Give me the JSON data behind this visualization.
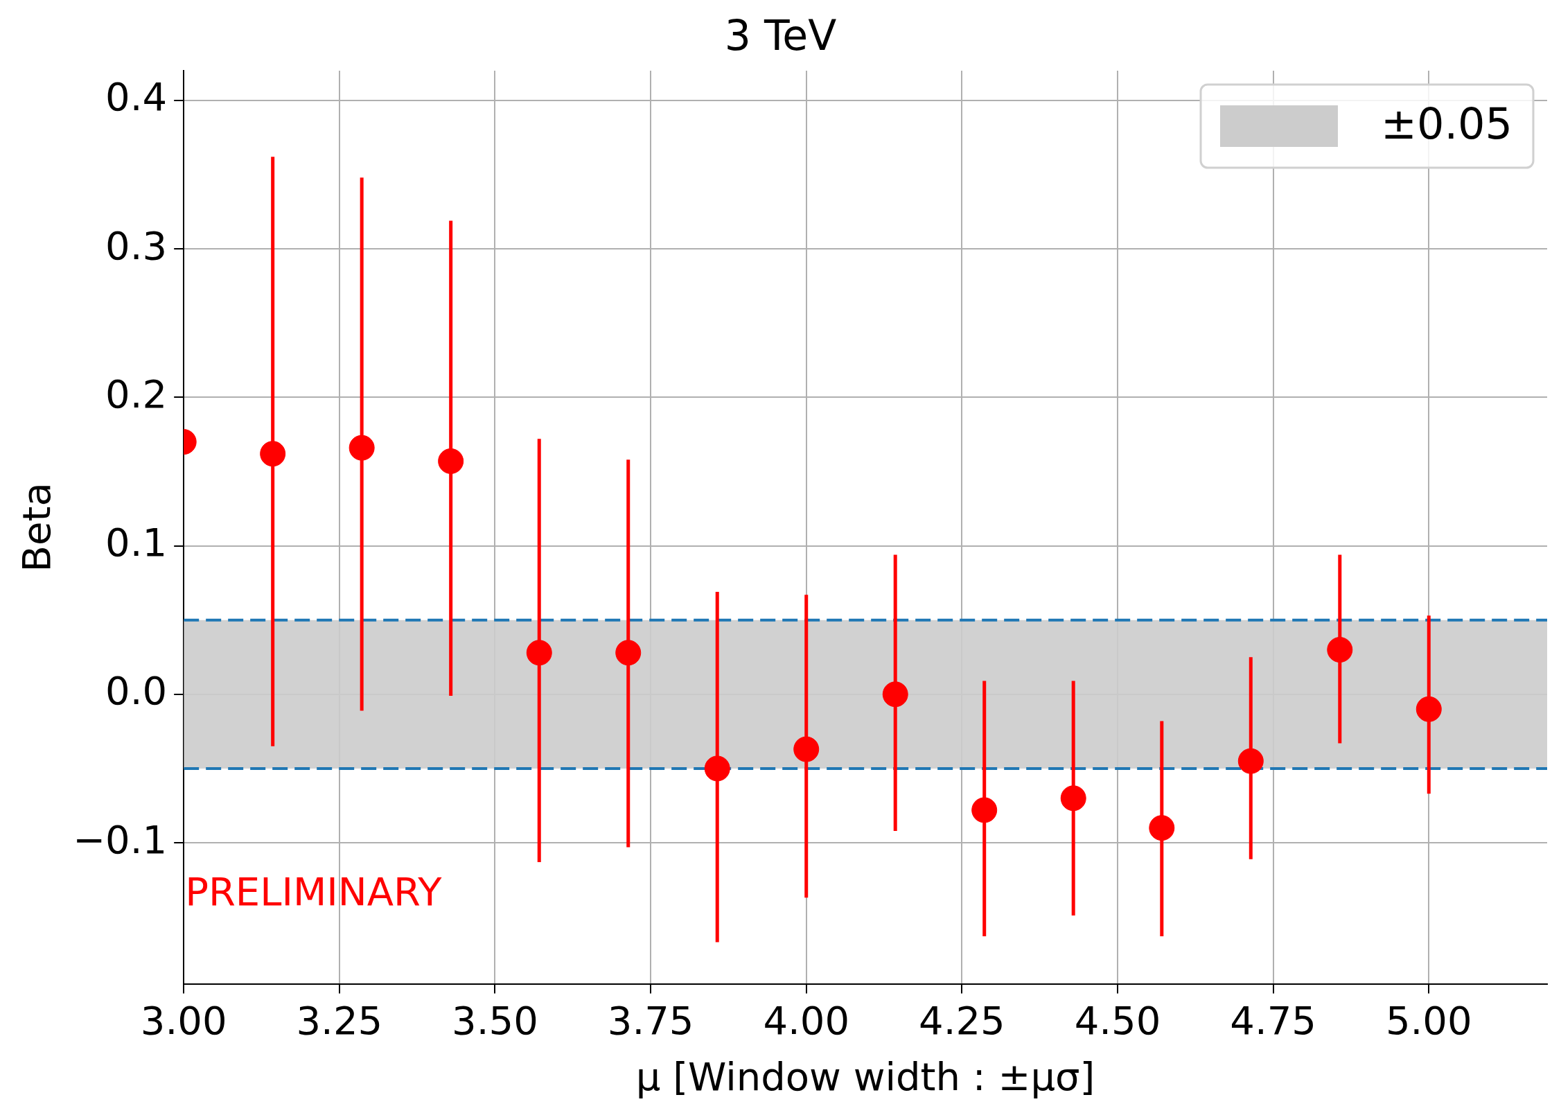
{
  "chart_data": {
    "type": "scatter",
    "title": "3 TeV",
    "xlabel": "μ [Window width : ±μσ]",
    "ylabel": "Beta",
    "x": [
      3.0,
      3.143,
      3.286,
      3.429,
      3.571,
      3.714,
      3.857,
      4.0,
      4.143,
      4.286,
      4.429,
      4.571,
      4.714,
      4.857,
      5.0
    ],
    "series": [
      {
        "color": "#ff0000",
        "values": [
          0.17,
          0.162,
          0.166,
          0.157,
          0.028,
          0.028,
          -0.05,
          -0.037,
          0.0,
          -0.078,
          -0.07,
          -0.09,
          -0.045,
          0.03,
          -0.01
        ],
        "errors": [
          null,
          [
            -0.035,
            0.362
          ],
          [
            -0.011,
            0.348
          ],
          [
            -0.001,
            0.319
          ],
          [
            -0.113,
            0.172
          ],
          [
            -0.103,
            0.158
          ],
          [
            -0.167,
            0.069
          ],
          [
            -0.137,
            0.067
          ],
          [
            -0.092,
            0.094
          ],
          [
            -0.163,
            0.009
          ],
          [
            -0.149,
            0.009
          ],
          [
            -0.163,
            -0.018
          ],
          [
            -0.111,
            0.025
          ],
          [
            -0.033,
            0.094
          ],
          [
            -0.067,
            0.053
          ]
        ]
      }
    ],
    "marker": "circle",
    "xlim": [
      3.0,
      5.19
    ],
    "xticks": [
      {
        "value": 3,
        "label": "3.00"
      },
      {
        "value": 3.25,
        "label": "3.25"
      },
      {
        "value": 3.5,
        "label": "3.50"
      },
      {
        "value": 3.75,
        "label": "3.75"
      },
      {
        "value": 4,
        "label": "4.00"
      },
      {
        "value": 4.25,
        "label": "4.25"
      },
      {
        "value": 4.5,
        "label": "4.50"
      },
      {
        "value": 4.75,
        "label": "4.75"
      },
      {
        "value": 5,
        "label": "5.00"
      }
    ],
    "ylim": [
      -0.195,
      0.42
    ],
    "yticks": [
      {
        "value": -0.1,
        "label": "−0.1"
      },
      {
        "value": 0,
        "label": "0.0"
      },
      0.1,
      0.2,
      0.3,
      0.4
    ],
    "bands": [
      {
        "axis": "y",
        "from": -0.05,
        "to": 0.05,
        "label": "±0.05",
        "color": "#cccccc"
      }
    ],
    "ref_lines": [
      {
        "axis": "y",
        "value": 0.05,
        "color": "#1f77b4",
        "line_style": "dashed"
      },
      {
        "axis": "y",
        "value": -0.05,
        "color": "#1f77b4",
        "line_style": "dashed"
      }
    ],
    "annotations": [
      "PRELIMINARY"
    ],
    "grid": true,
    "legend": "top right"
  }
}
